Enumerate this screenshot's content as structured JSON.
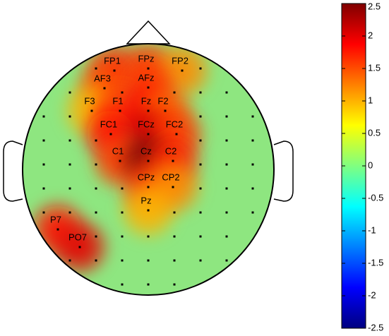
{
  "chart_data": {
    "type": "topoplot",
    "colormap": "jet",
    "categories": [
      "FP1",
      "FPz",
      "FP2",
      "AF3",
      "AFz",
      "F3",
      "F1",
      "Fz",
      "F2",
      "FC1",
      "FCz",
      "FC2",
      "C1",
      "Cz",
      "C2",
      "CPz",
      "CP2",
      "Pz",
      "P7",
      "PO7"
    ],
    "values": [
      1.7,
      1.6,
      1.2,
      1.5,
      1.6,
      1.0,
      1.6,
      1.9,
      1.4,
      1.8,
      2.1,
      1.6,
      1.6,
      2.5,
      1.7,
      1.6,
      1.2,
      1.0,
      1.8,
      2.0
    ],
    "ylim": [
      -2.5,
      2.5
    ],
    "yticks": [
      -2.5,
      -2,
      -1.5,
      -1,
      -0.5,
      0,
      0.5,
      1,
      1.5,
      2,
      2.5
    ]
  }
}
